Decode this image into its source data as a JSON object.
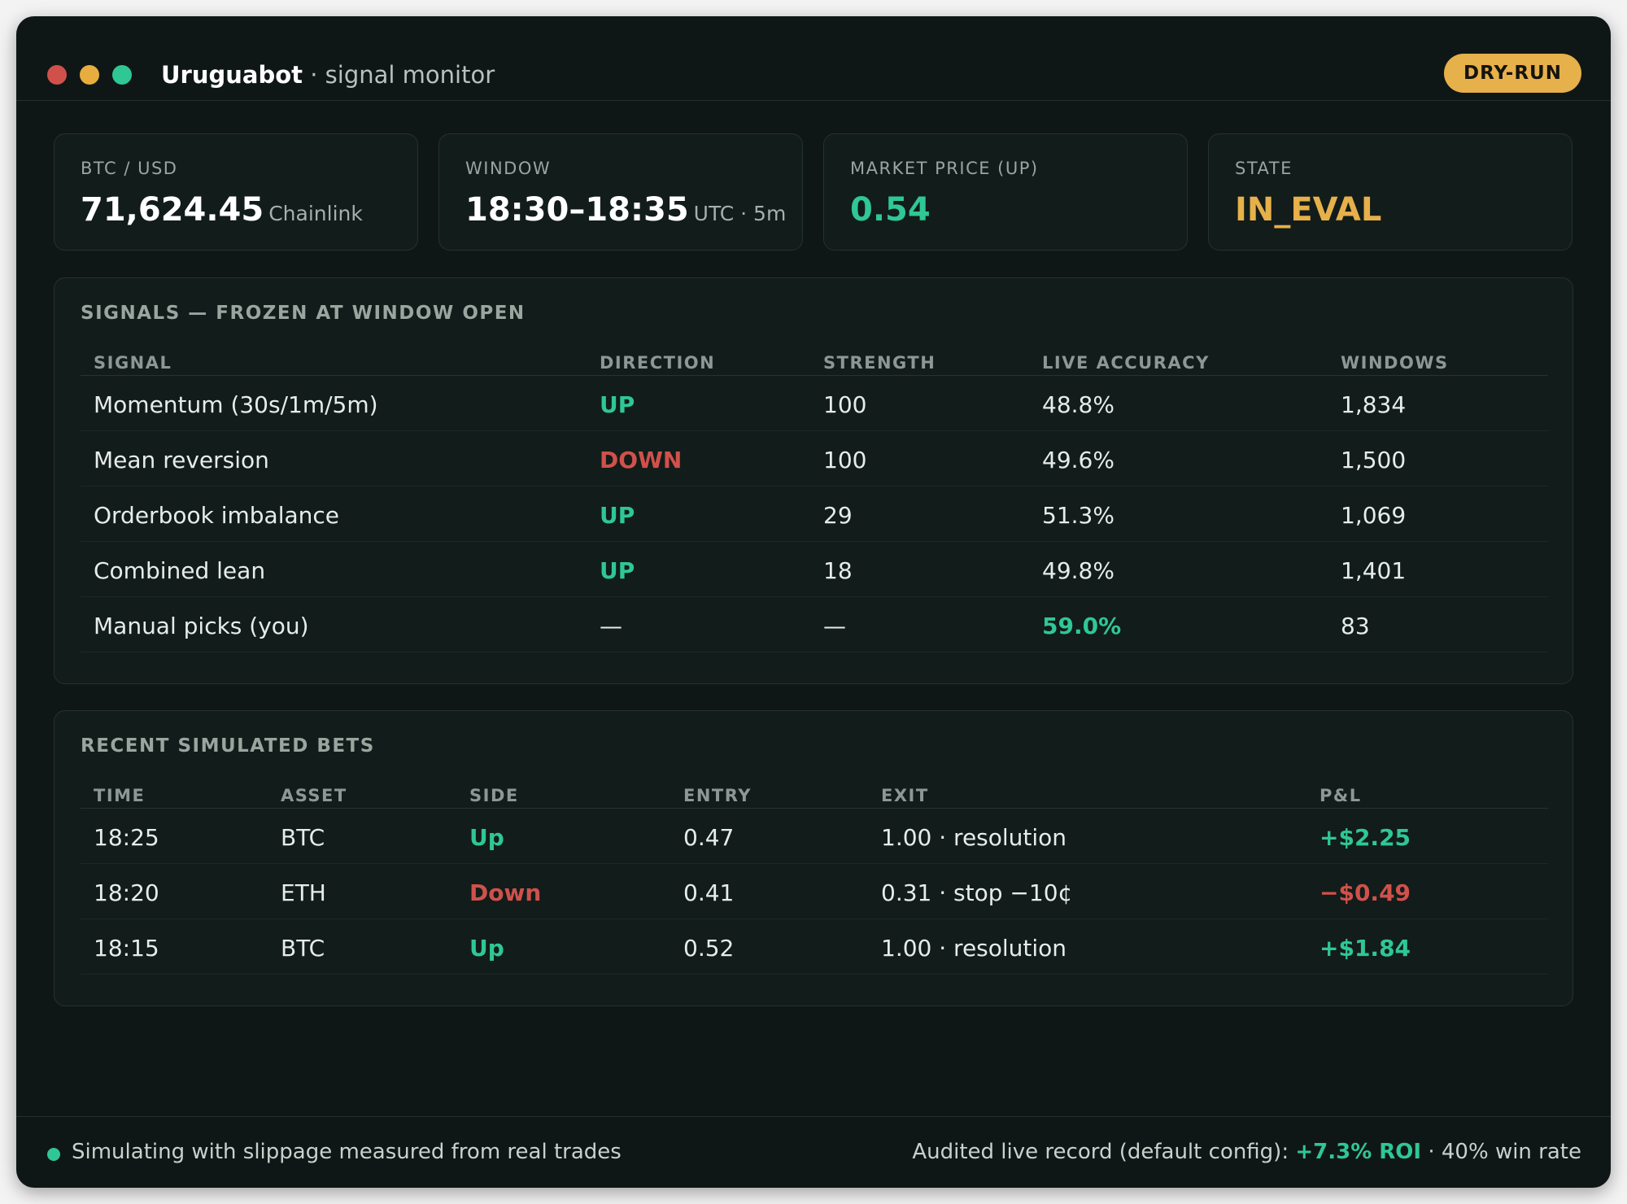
{
  "window": {
    "app_name": "Uruguabot",
    "subtitle": "· signal monitor",
    "mode_badge": "DRY-RUN"
  },
  "stats": [
    {
      "label": "BTC / USD",
      "value": "71,624.45",
      "unit": "Chainlink"
    },
    {
      "label": "WINDOW",
      "value": "18:30–18:35",
      "unit": "UTC · 5m"
    },
    {
      "label": "MARKET PRICE (UP)",
      "value": "0.54",
      "unit": ""
    },
    {
      "label": "STATE",
      "value": "IN_EVAL",
      "unit": ""
    }
  ],
  "signals": {
    "title": "SIGNALS — FROZEN AT WINDOW OPEN",
    "headers": [
      "SIGNAL",
      "DIRECTION",
      "STRENGTH",
      "LIVE ACCURACY",
      "WINDOWS"
    ],
    "rows": [
      {
        "signal": "Momentum (30s/1m/5m)",
        "direction": "UP",
        "strength": "100",
        "accuracy": "48.8%",
        "windows": "1,834"
      },
      {
        "signal": "Mean reversion",
        "direction": "DOWN",
        "strength": "100",
        "accuracy": "49.6%",
        "windows": "1,500"
      },
      {
        "signal": "Orderbook imbalance",
        "direction": "UP",
        "strength": "29",
        "accuracy": "51.3%",
        "windows": "1,069"
      },
      {
        "signal": "Combined lean",
        "direction": "UP",
        "strength": "18",
        "accuracy": "49.8%",
        "windows": "1,401"
      },
      {
        "signal": "Manual picks (you)",
        "direction": "—",
        "strength": "—",
        "accuracy": "59.0%",
        "windows": "83"
      }
    ]
  },
  "bets": {
    "title": "RECENT SIMULATED BETS",
    "headers": [
      "TIME",
      "ASSET",
      "SIDE",
      "ENTRY",
      "EXIT",
      "P&L"
    ],
    "rows": [
      {
        "time": "18:25",
        "asset": "BTC",
        "side": "Up",
        "entry": "0.47",
        "exit": "1.00 · resolution",
        "pnl": "+$2.25"
      },
      {
        "time": "18:20",
        "asset": "ETH",
        "side": "Down",
        "entry": "0.41",
        "exit": "0.31 · stop −10¢",
        "pnl": "−$0.49"
      },
      {
        "time": "18:15",
        "asset": "BTC",
        "side": "Up",
        "entry": "0.52",
        "exit": "1.00 · resolution",
        "pnl": "+$1.84"
      }
    ]
  },
  "footer": {
    "status": "Simulating with slippage measured from real trades",
    "record_label": "Audited live record (default config):",
    "roi": "+7.3% ROI",
    "win_rate": "· 40% win rate"
  },
  "colors": {
    "accent_green": "#2fc793",
    "accent_red": "#d0514b",
    "accent_yellow": "#e6b04a",
    "background": "#0f1716"
  }
}
